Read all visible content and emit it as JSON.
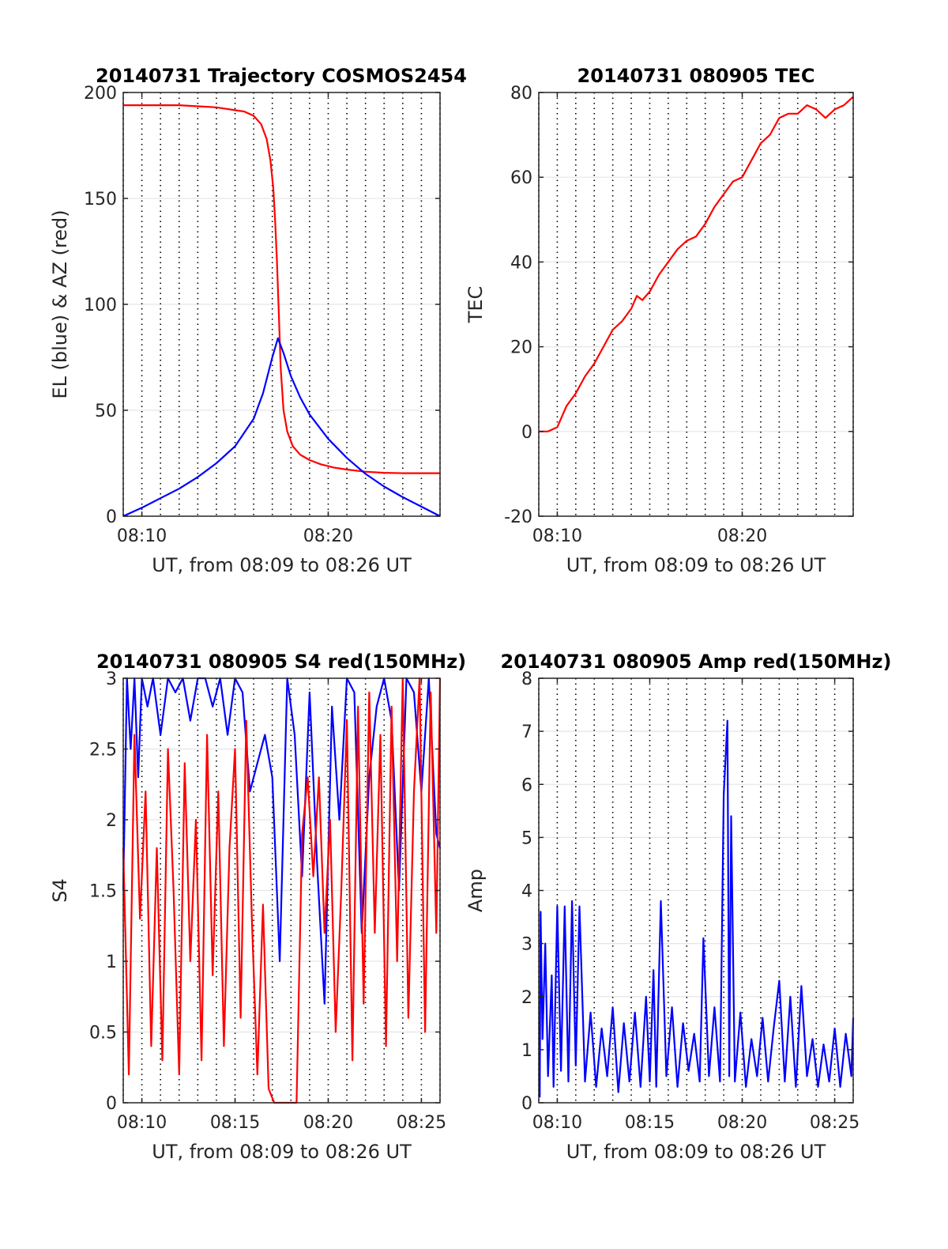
{
  "chart_data": [
    {
      "id": "trajectory",
      "type": "line",
      "title": "20140731 Trajectory COSMOS2454",
      "xlabel": "UT, from 08:09 to 08:26 UT",
      "ylabel": "EL (blue) & AZ (red)",
      "xlim": [
        9.0,
        26.0
      ],
      "ylim": [
        0,
        200
      ],
      "x_ticks": [
        {
          "v": 10,
          "label": "08:10"
        },
        {
          "v": 20,
          "label": "08:20"
        }
      ],
      "y_ticks": [
        {
          "v": 0,
          "label": "0"
        },
        {
          "v": 50,
          "label": "50"
        },
        {
          "v": 100,
          "label": "100"
        },
        {
          "v": 150,
          "label": "150"
        },
        {
          "v": 200,
          "label": "200"
        }
      ],
      "grid": true,
      "series": [
        {
          "color": "#ff0000",
          "x": [
            9.0,
            12.0,
            14.0,
            15.5,
            16.0,
            16.4,
            16.7,
            16.9,
            17.05,
            17.15,
            17.25,
            17.35,
            17.45,
            17.6,
            17.8,
            18.1,
            18.5,
            19.0,
            19.6,
            20.3,
            21.0,
            22.0,
            23.0,
            24.0,
            26.0
          ],
          "y": [
            194,
            194,
            193,
            191,
            189,
            185,
            178,
            168,
            155,
            140,
            120,
            95,
            70,
            50,
            40,
            33,
            29,
            26.5,
            24.5,
            23,
            22,
            21,
            20.5,
            20.3,
            20.3
          ]
        },
        {
          "color": "#0000ff",
          "x": [
            9.0,
            10.0,
            11.0,
            12.0,
            13.0,
            14.0,
            15.0,
            16.0,
            16.5,
            17.0,
            17.3,
            17.6,
            18.0,
            18.5,
            19.0,
            20.0,
            21.0,
            22.0,
            23.0,
            24.0,
            25.0,
            26.0
          ],
          "y": [
            0,
            4,
            8.5,
            13,
            18.5,
            25,
            33,
            46,
            58,
            75,
            84,
            77,
            66,
            56,
            48,
            36.5,
            27.5,
            20,
            14,
            9,
            4.5,
            0
          ]
        }
      ]
    },
    {
      "id": "tec",
      "type": "line",
      "title": "20140731 080905 TEC",
      "xlabel": "UT, from 08:09 to 08:26 UT",
      "ylabel": "TEC",
      "xlim": [
        9.0,
        26.0
      ],
      "ylim": [
        -20,
        80
      ],
      "x_ticks": [
        {
          "v": 10,
          "label": "08:10"
        },
        {
          "v": 20,
          "label": "08:20"
        }
      ],
      "y_ticks": [
        {
          "v": -20,
          "label": "-20"
        },
        {
          "v": 0,
          "label": "0"
        },
        {
          "v": 20,
          "label": "20"
        },
        {
          "v": 40,
          "label": "40"
        },
        {
          "v": 60,
          "label": "60"
        },
        {
          "v": 80,
          "label": "80"
        }
      ],
      "grid": true,
      "series": [
        {
          "color": "#ff0000",
          "x": [
            9.0,
            9.5,
            10.0,
            10.5,
            11.0,
            11.5,
            12.0,
            12.5,
            13.0,
            13.5,
            14.0,
            14.3,
            14.6,
            15.0,
            15.5,
            16.0,
            16.5,
            17.0,
            17.5,
            18.0,
            18.5,
            19.0,
            19.5,
            20.0,
            20.5,
            21.0,
            21.5,
            22.0,
            22.5,
            23.0,
            23.5,
            24.0,
            24.5,
            25.0,
            25.5,
            26.0
          ],
          "y": [
            0,
            0,
            1,
            6,
            9,
            13,
            16,
            20,
            24,
            26,
            29,
            32,
            31,
            33,
            37,
            40,
            43,
            45,
            46,
            49,
            53,
            56,
            59,
            60,
            64,
            68,
            70,
            74,
            75,
            75,
            77,
            76,
            74,
            76,
            77,
            79
          ]
        }
      ]
    },
    {
      "id": "s4",
      "type": "line",
      "title": "20140731 080905 S4 red(150MHz)",
      "xlabel": "UT, from 08:09 to 08:26 UT",
      "ylabel": "S4",
      "xlim": [
        9.0,
        26.0
      ],
      "ylim": [
        0,
        3
      ],
      "x_ticks": [
        {
          "v": 10,
          "label": "08:10"
        },
        {
          "v": 15,
          "label": "08:15"
        },
        {
          "v": 20,
          "label": "08:20"
        },
        {
          "v": 25,
          "label": "08:25"
        }
      ],
      "y_ticks": [
        {
          "v": 0,
          "label": "0"
        },
        {
          "v": 0.5,
          "label": "0.5"
        },
        {
          "v": 1,
          "label": "1"
        },
        {
          "v": 1.5,
          "label": "1.5"
        },
        {
          "v": 2,
          "label": "2"
        },
        {
          "v": 2.5,
          "label": "2.5"
        },
        {
          "v": 3,
          "label": "3"
        }
      ],
      "grid": true,
      "series": [
        {
          "color": "#0000ff",
          "x": [
            9.0,
            9.2,
            9.4,
            9.6,
            9.8,
            10.0,
            10.3,
            10.6,
            11.0,
            11.4,
            11.8,
            12.2,
            12.6,
            13.0,
            13.4,
            13.8,
            14.2,
            14.6,
            15.0,
            15.4,
            15.8,
            16.2,
            16.6,
            17.0,
            17.4,
            17.8,
            18.2,
            18.6,
            19.0,
            19.4,
            19.8,
            20.2,
            20.6,
            21.0,
            21.4,
            21.8,
            22.2,
            22.6,
            23.0,
            23.4,
            23.8,
            24.2,
            24.6,
            25.0,
            25.4,
            25.8,
            26.0
          ],
          "y": [
            1.5,
            3,
            2.5,
            3,
            2.3,
            3,
            2.8,
            3,
            2.6,
            3,
            2.9,
            3,
            2.7,
            3,
            3,
            2.8,
            3,
            2.6,
            3,
            2.9,
            2.2,
            2.4,
            2.6,
            2.3,
            1.0,
            3,
            2.6,
            1.6,
            2.9,
            1.7,
            0.7,
            2.8,
            2.0,
            3,
            2.9,
            1.2,
            2.3,
            2.8,
            3,
            2.7,
            1.5,
            3,
            2.9,
            2.2,
            3,
            1.9,
            1.8
          ]
        },
        {
          "color": "#ff0000",
          "x": [
            9.0,
            9.3,
            9.6,
            9.9,
            10.2,
            10.5,
            10.8,
            11.1,
            11.4,
            11.7,
            12.0,
            12.3,
            12.6,
            12.9,
            13.2,
            13.5,
            13.8,
            14.1,
            14.4,
            14.7,
            15.0,
            15.3,
            15.6,
            15.9,
            16.2,
            16.5,
            16.8,
            17.1,
            17.4,
            17.7,
            18.0,
            18.3,
            18.6,
            18.9,
            19.2,
            19.5,
            19.8,
            20.1,
            20.4,
            20.7,
            21.0,
            21.3,
            21.6,
            21.9,
            22.2,
            22.5,
            22.8,
            23.1,
            23.4,
            23.7,
            24.0,
            24.3,
            24.6,
            24.9,
            25.2,
            25.5,
            25.8,
            26.0
          ],
          "y": [
            1.8,
            0.2,
            2.6,
            1.3,
            2.2,
            0.4,
            1.8,
            0.3,
            2.5,
            1.5,
            0.2,
            2.4,
            1.0,
            2.0,
            0.3,
            2.6,
            0.9,
            2.2,
            0.4,
            1.8,
            2.5,
            0.6,
            2.7,
            1.3,
            0.2,
            1.4,
            0.1,
            0.0,
            0.0,
            0.0,
            0.0,
            0.0,
            1.9,
            2.3,
            1.6,
            2.3,
            1.2,
            2.0,
            0.5,
            1.5,
            2.7,
            0.3,
            2.8,
            0.7,
            2.9,
            1.2,
            2.6,
            0.4,
            2.8,
            1.0,
            3,
            0.6,
            2.2,
            3,
            0.5,
            2.9,
            1.2,
            3
          ]
        }
      ]
    },
    {
      "id": "amp",
      "type": "line",
      "title": "20140731 080905 Amp red(150MHz)",
      "xlabel": "UT, from 08:09 to 08:26 UT",
      "ylabel": "Amp",
      "xlim": [
        9.0,
        26.0
      ],
      "ylim": [
        0,
        8
      ],
      "x_ticks": [
        {
          "v": 10,
          "label": "08:10"
        },
        {
          "v": 15,
          "label": "08:15"
        },
        {
          "v": 20,
          "label": "08:20"
        },
        {
          "v": 25,
          "label": "08:25"
        }
      ],
      "y_ticks": [
        {
          "v": 0,
          "label": "0"
        },
        {
          "v": 1,
          "label": "1"
        },
        {
          "v": 2,
          "label": "2"
        },
        {
          "v": 3,
          "label": "3"
        },
        {
          "v": 4,
          "label": "4"
        },
        {
          "v": 5,
          "label": "5"
        },
        {
          "v": 6,
          "label": "6"
        },
        {
          "v": 7,
          "label": "7"
        },
        {
          "v": 8,
          "label": "8"
        }
      ],
      "grid": true,
      "series": [
        {
          "color": "#0000ff",
          "x": [
            9.05,
            9.1,
            9.2,
            9.35,
            9.5,
            9.7,
            9.8,
            10.0,
            10.2,
            10.4,
            10.6,
            10.8,
            11.0,
            11.2,
            11.5,
            11.8,
            12.1,
            12.4,
            12.7,
            13.0,
            13.3,
            13.6,
            13.9,
            14.2,
            14.5,
            14.8,
            15.0,
            15.2,
            15.35,
            15.6,
            15.9,
            16.2,
            16.5,
            16.8,
            17.1,
            17.4,
            17.7,
            17.9,
            18.2,
            18.5,
            18.8,
            19.0,
            19.2,
            19.3,
            19.4,
            19.6,
            19.9,
            20.2,
            20.5,
            20.8,
            21.1,
            21.4,
            21.7,
            22.0,
            22.3,
            22.6,
            22.9,
            23.2,
            23.5,
            23.8,
            24.1,
            24.4,
            24.7,
            25.0,
            25.3,
            25.6,
            25.9,
            26.0
          ],
          "y": [
            0.1,
            3.6,
            1.2,
            3.0,
            0.5,
            2.4,
            0.3,
            3.7,
            0.6,
            3.7,
            0.4,
            3.8,
            0.7,
            3.7,
            0.4,
            1.7,
            0.3,
            1.4,
            0.5,
            1.8,
            0.2,
            1.5,
            0.4,
            1.7,
            0.3,
            2.0,
            0.4,
            2.5,
            0.3,
            3.8,
            0.5,
            1.8,
            0.3,
            1.5,
            0.6,
            1.3,
            0.4,
            3.1,
            0.5,
            1.8,
            0.4,
            5.8,
            7.2,
            0.5,
            5.4,
            0.4,
            1.7,
            0.3,
            1.2,
            0.5,
            1.6,
            0.4,
            1.4,
            2.3,
            0.4,
            2.0,
            0.3,
            2.2,
            0.5,
            1.2,
            0.3,
            1.1,
            0.4,
            1.4,
            0.3,
            1.3,
            0.5,
            1.6
          ]
        }
      ]
    }
  ]
}
